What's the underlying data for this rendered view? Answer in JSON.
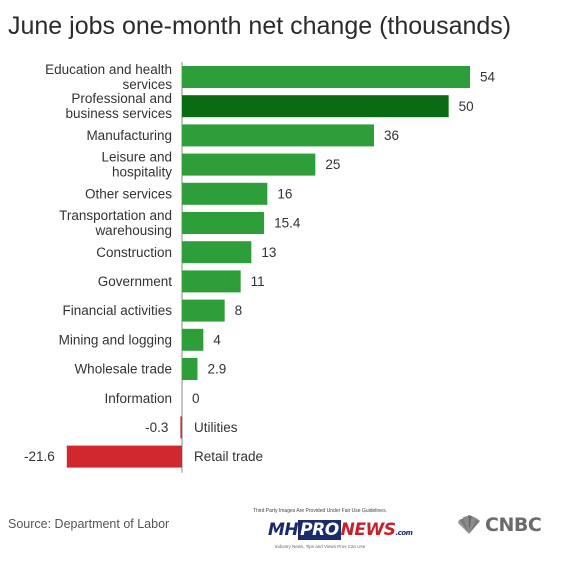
{
  "title": "June jobs one-month net change (thousands)",
  "source": "Source: Department of Labor",
  "watermark": {
    "top_text": "Third Party Images Are Provided Under Fair Use Guidelines.",
    "logo_mh": "MH",
    "logo_pro": "PRO",
    "logo_news": "NEWS",
    "logo_com": ".com",
    "tagline": "Industry News, Tips and Views Pros Can Use"
  },
  "brand": {
    "name": "CNBC",
    "icon": "peacock-icon"
  },
  "colors": {
    "positive": "#2e9e3b",
    "highlight": "#0b6b12",
    "negative": "#d0282e",
    "axis": "#888888"
  },
  "chart_data": {
    "type": "bar",
    "orientation": "horizontal",
    "title": "June jobs one-month net change (thousands)",
    "categories": [
      "Education and health services",
      "Professional and business services",
      "Manufacturing",
      "Leisure and hospitality",
      "Other services",
      "Transportation and warehousing",
      "Construction",
      "Government",
      "Financial activities",
      "Mining and logging",
      "Wholesale trade",
      "Information",
      "Utilities",
      "Retail trade"
    ],
    "values": [
      54,
      50,
      36,
      25,
      16,
      15.4,
      13,
      11,
      8,
      4,
      2.9,
      0,
      -0.3,
      -21.6
    ],
    "value_labels": [
      "54",
      "50",
      "36",
      "25",
      "16",
      "15.4",
      "13",
      "11",
      "8",
      "4",
      "2.9",
      "0",
      "-0.3",
      "-21.6"
    ],
    "highlight_index": 1,
    "xlim": [
      -21.6,
      54
    ],
    "grid": false,
    "legend": "none"
  }
}
